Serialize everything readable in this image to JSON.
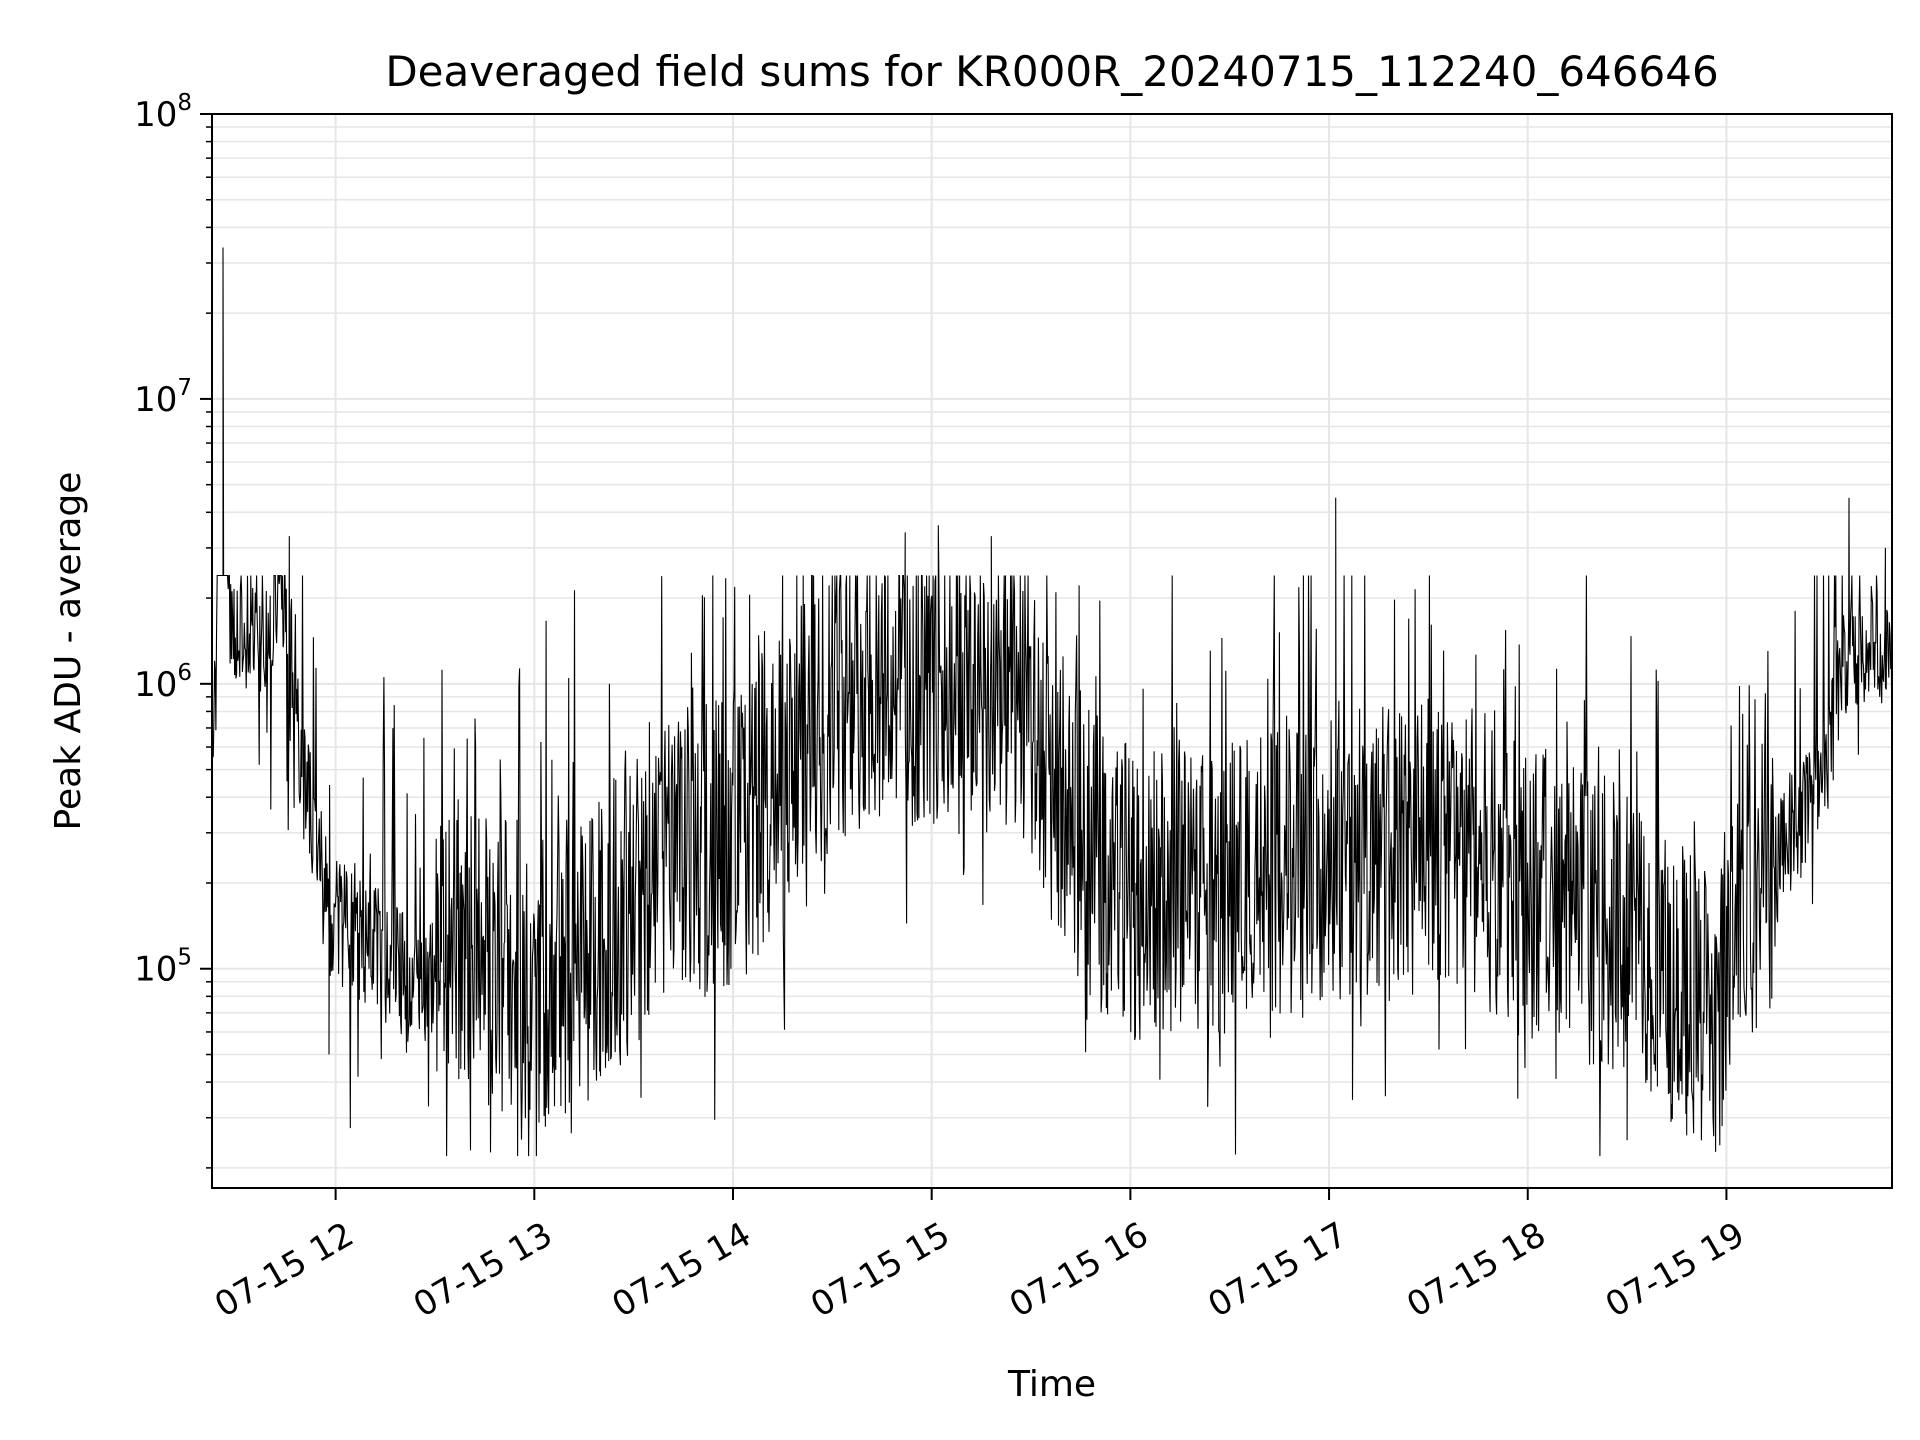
{
  "chart_data": {
    "type": "line",
    "title": "Deaveraged field sums for KR000R_20240715_112240_646646",
    "xlabel": "Time",
    "ylabel": "Peak ADU - average",
    "yscale": "log",
    "ylim": [
      17000,
      100000000
    ],
    "xlim": [
      "2024-07-15 11:22:40",
      "2024-07-15 19:50:00"
    ],
    "grid": true,
    "legend": "none",
    "line_color": "#000000",
    "grid_color": "#e6e6e6",
    "x_ticks": [
      {
        "label": "07-15 12",
        "time": "2024-07-15 12:00"
      },
      {
        "label": "07-15 13",
        "time": "2024-07-15 13:00"
      },
      {
        "label": "07-15 14",
        "time": "2024-07-15 14:00"
      },
      {
        "label": "07-15 15",
        "time": "2024-07-15 15:00"
      },
      {
        "label": "07-15 16",
        "time": "2024-07-15 16:00"
      },
      {
        "label": "07-15 17",
        "time": "2024-07-15 17:00"
      },
      {
        "label": "07-15 18",
        "time": "2024-07-15 18:00"
      },
      {
        "label": "07-15 19",
        "time": "2024-07-15 19:00"
      }
    ],
    "y_ticks": [
      {
        "base": "10",
        "exp": "5",
        "value": 100000
      },
      {
        "base": "10",
        "exp": "6",
        "value": 1000000
      },
      {
        "base": "10",
        "exp": "7",
        "value": 10000000
      },
      {
        "base": "10",
        "exp": "8",
        "value": 100000000
      }
    ],
    "series": [
      {
        "points": [
          [
            "2024-07-15 11:22",
            400000
          ],
          [
            "2024-07-15 11:24",
            1200000
          ],
          [
            "2024-07-15 11:26",
            34000000
          ],
          [
            "2024-07-15 11:28",
            1400000
          ],
          [
            "2024-07-15 11:32",
            1500000
          ],
          [
            "2024-07-15 11:36",
            1600000
          ],
          [
            "2024-07-15 11:40",
            1300000
          ],
          [
            "2024-07-15 11:43",
            2800000
          ],
          [
            "2024-07-15 11:46",
            1200000
          ],
          [
            "2024-07-15 11:50",
            500000
          ],
          [
            "2024-07-15 11:54",
            300000
          ],
          [
            "2024-07-15 11:58",
            150000
          ],
          [
            "2024-07-15 12:05",
            130000
          ],
          [
            "2024-07-15 12:15",
            110000
          ],
          [
            "2024-07-15 12:25",
            85000
          ],
          [
            "2024-07-15 12:35",
            120000
          ],
          [
            "2024-07-15 12:45",
            110000
          ],
          [
            "2024-07-15 12:55",
            100000
          ],
          [
            "2024-07-15 13:05",
            90000
          ],
          [
            "2024-07-15 13:15",
            95000
          ],
          [
            "2024-07-15 13:25",
            160000
          ],
          [
            "2024-07-15 13:35",
            200000
          ],
          [
            "2024-07-15 13:45",
            250000
          ],
          [
            "2024-07-15 13:55",
            280000
          ],
          [
            "2024-07-15 14:05",
            300000
          ],
          [
            "2024-07-15 14:15",
            450000
          ],
          [
            "2024-07-15 14:25",
            700000
          ],
          [
            "2024-07-15 14:35",
            1000000
          ],
          [
            "2024-07-15 14:45",
            1100000
          ],
          [
            "2024-07-15 14:55",
            1050000
          ],
          [
            "2024-07-15 15:05",
            1000000
          ],
          [
            "2024-07-15 15:15",
            950000
          ],
          [
            "2024-07-15 15:25",
            900000
          ],
          [
            "2024-07-15 15:35",
            500000
          ],
          [
            "2024-07-15 15:45",
            300000
          ],
          [
            "2024-07-15 15:55",
            200000
          ],
          [
            "2024-07-15 16:05",
            180000
          ],
          [
            "2024-07-15 16:15",
            200000
          ],
          [
            "2024-07-15 16:25",
            190000
          ],
          [
            "2024-07-15 16:35",
            200000
          ],
          [
            "2024-07-15 16:45",
            220000
          ],
          [
            "2024-07-15 16:55",
            230000
          ],
          [
            "2024-07-15 17:05",
            250000
          ],
          [
            "2024-07-15 17:15",
            260000
          ],
          [
            "2024-07-15 17:25",
            270000
          ],
          [
            "2024-07-15 17:35",
            260000
          ],
          [
            "2024-07-15 17:45",
            250000
          ],
          [
            "2024-07-15 17:55",
            200000
          ],
          [
            "2024-07-15 18:05",
            180000
          ],
          [
            "2024-07-15 18:15",
            160000
          ],
          [
            "2024-07-15 18:25",
            140000
          ],
          [
            "2024-07-15 18:35",
            120000
          ],
          [
            "2024-07-15 18:45",
            90000
          ],
          [
            "2024-07-15 18:55",
            70000
          ],
          [
            "2024-07-15 19:05",
            150000
          ],
          [
            "2024-07-15 19:15",
            250000
          ],
          [
            "2024-07-15 19:25",
            400000
          ],
          [
            "2024-07-15 19:30",
            550000
          ],
          [
            "2024-07-15 19:35",
            1200000
          ],
          [
            "2024-07-15 19:40",
            1400000
          ],
          [
            "2024-07-15 19:45",
            1300000
          ],
          [
            "2024-07-15 19:50",
            1100000
          ]
        ],
        "spikes": [
          [
            "2024-07-15 11:26",
            34000000
          ],
          [
            "2024-07-15 14:52",
            3400000
          ],
          [
            "2024-07-15 15:02",
            3600000
          ],
          [
            "2024-07-15 15:18",
            3300000
          ],
          [
            "2024-07-15 17:02",
            4500000
          ],
          [
            "2024-07-15 19:37",
            4500000
          ],
          [
            "2024-07-15 19:48",
            3000000
          ],
          [
            "2024-07-15 11:46",
            3300000
          ]
        ],
        "dips": [
          [
            "2024-07-15 11:58",
            50000
          ],
          [
            "2024-07-15 13:20",
            42000
          ],
          [
            "2024-07-15 17:57",
            35000
          ],
          [
            "2024-07-15 18:30",
            25000
          ],
          [
            "2024-07-15 18:48",
            26000
          ],
          [
            "2024-07-15 18:58",
            24000
          ]
        ]
      }
    ]
  }
}
